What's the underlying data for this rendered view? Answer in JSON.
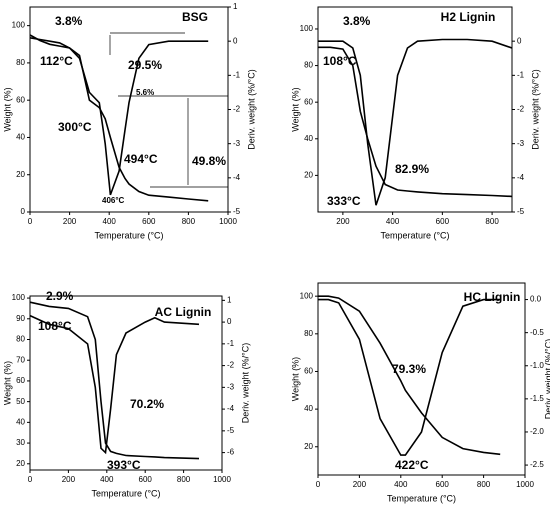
{
  "chart_data": [
    {
      "type": "line",
      "title": "BSG",
      "xlabel": "Temperature (°C)",
      "ylabel": "Weight (%)",
      "y2label": "Deriv. weight (%/°C)",
      "x": [
        0,
        50,
        100,
        150,
        200,
        250,
        300,
        350,
        380,
        406,
        450,
        480,
        500,
        550,
        600,
        700,
        800,
        900
      ],
      "series": [
        {
          "color": "#000000",
          "values": [
            95,
            92,
            90,
            89,
            88,
            84,
            60,
            56,
            50,
            40,
            24,
            18,
            15,
            11,
            9,
            8,
            7,
            6
          ]
        },
        {
          "color": "#000000",
          "axis": "y2",
          "values": [
            0.1,
            0.05,
            0,
            -0.05,
            -0.2,
            -0.5,
            -1.5,
            -1.8,
            -3.0,
            -4.5,
            -3.8,
            -2.6,
            -1.8,
            -0.5,
            -0.1,
            0,
            0,
            0
          ]
        }
      ],
      "xlim": [
        0,
        1000
      ],
      "xticks": [
        0,
        200,
        400,
        600,
        800,
        1000
      ],
      "ylim": [
        0,
        110
      ],
      "yticks": [
        0,
        20,
        40,
        60,
        80,
        100
      ],
      "y2lim": [
        -5,
        1
      ],
      "y2ticks": [
        -5,
        -4,
        -3,
        -2,
        -1,
        0,
        1
      ],
      "annotations": [
        "3.8%",
        "112°C",
        "29.5%",
        "5.6%",
        "300°C",
        "49.8%",
        "494°C",
        "406°C"
      ]
    },
    {
      "type": "line",
      "title": "H2 Lignin",
      "xlabel": "Temperature (°C)",
      "ylabel": "Weight (%)",
      "y2label": "Deriv. weight (%/°C)",
      "x": [
        100,
        150,
        200,
        240,
        270,
        300,
        333,
        370,
        420,
        460,
        500,
        600,
        700,
        800,
        880
      ],
      "series": [
        {
          "color": "#000000",
          "values": [
            90,
            90,
            89,
            80,
            55,
            40,
            25,
            15,
            12,
            11.5,
            11,
            10,
            9.5,
            9,
            8.5
          ]
        },
        {
          "color": "#000000",
          "axis": "y2",
          "values": [
            0,
            0,
            0,
            -0.2,
            -1,
            -3,
            -4.8,
            -4,
            -1,
            -0.2,
            0,
            0.05,
            0.05,
            0,
            -0.2
          ]
        }
      ],
      "xlim": [
        100,
        880
      ],
      "xticks": [
        200,
        400,
        600,
        800
      ],
      "ylim": [
        0,
        112
      ],
      "yticks": [
        20,
        40,
        60,
        80,
        100
      ],
      "y2lim": [
        -5,
        1
      ],
      "y2ticks": [
        -5,
        -4,
        -3,
        -2,
        -1,
        0
      ],
      "annotations": [
        "3.8%",
        "108°C",
        "82.9%",
        "333°C"
      ]
    },
    {
      "type": "line",
      "title": "AC Lignin",
      "xlabel": "Temperature (°C)",
      "ylabel": "Weight (%)",
      "y2label": "Deriv. weight (%/°C)",
      "x": [
        0,
        100,
        200,
        300,
        340,
        370,
        393,
        420,
        450,
        500,
        600,
        650,
        700,
        880
      ],
      "series": [
        {
          "color": "#000000",
          "values": [
            98,
            96,
            95,
            91,
            80,
            50,
            30,
            26,
            25,
            24,
            23.5,
            23.3,
            23,
            22.5
          ]
        },
        {
          "color": "#000000",
          "axis": "y2",
          "values": [
            0.3,
            -0.1,
            -0.3,
            -1,
            -3,
            -5.8,
            -6,
            -4,
            -1.5,
            -0.5,
            0,
            0.2,
            0,
            -0.1
          ]
        }
      ],
      "xlim": [
        0,
        1000
      ],
      "xticks": [
        0,
        200,
        400,
        600,
        800,
        1000
      ],
      "ylim": [
        17,
        101
      ],
      "yticks": [
        20,
        30,
        40,
        50,
        60,
        70,
        80,
        90,
        100
      ],
      "y2lim": [
        -6.8,
        1.2
      ],
      "y2ticks": [
        -6,
        -5,
        -4,
        -3,
        -2,
        -1,
        0,
        1
      ],
      "annotations": [
        "2.9%",
        "108°C",
        "70.2%",
        "393°C"
      ]
    },
    {
      "type": "line",
      "title": "HC Lignin",
      "xlabel": "Temperature (°C)",
      "ylabel": "Weight (%)",
      "y2label": "Deriv. weight (%/°C)",
      "x": [
        0,
        50,
        100,
        200,
        300,
        400,
        422,
        500,
        600,
        700,
        800,
        880
      ],
      "series": [
        {
          "color": "#000000",
          "values": [
            100,
            100,
            99,
            92,
            75,
            55,
            50,
            38,
            25,
            19,
            17,
            16
          ]
        },
        {
          "color": "#000000",
          "axis": "y2",
          "values": [
            0,
            0,
            -0.05,
            -0.6,
            -1.8,
            -2.35,
            -2.35,
            -2.0,
            -0.8,
            -0.1,
            0,
            0
          ]
        }
      ],
      "xlim": [
        0,
        1000
      ],
      "xticks": [
        0,
        200,
        400,
        600,
        800,
        1000
      ],
      "ylim": [
        5,
        107
      ],
      "yticks": [
        20,
        40,
        60,
        80,
        100
      ],
      "y2lim": [
        -2.65,
        0.25
      ],
      "y2ticks": [
        {
          "value": -2.5,
          "label": "-2.5"
        },
        {
          "value": -2,
          "label": "-2.0"
        },
        {
          "value": -1.5,
          "label": "-1.5"
        },
        {
          "value": -1,
          "label": "-1.0"
        },
        {
          "value": -0.5,
          "label": "-0.5"
        },
        {
          "value": 0,
          "label": "0.0"
        }
      ],
      "annotations": [
        "79.3%",
        "422°C"
      ]
    }
  ]
}
